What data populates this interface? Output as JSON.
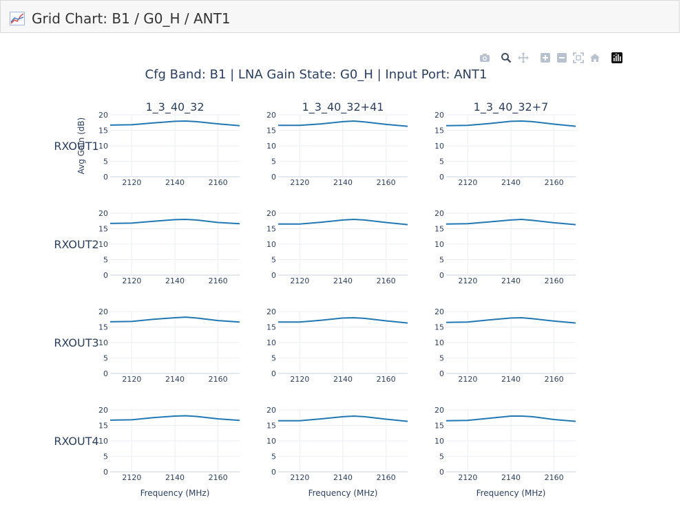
{
  "window": {
    "title": "Grid Chart: B1 / G0_H / ANT1",
    "icon": "chart-icon"
  },
  "modebar": {
    "items": [
      "camera-icon",
      "zoom-icon",
      "pan-icon",
      "zoom-in-icon",
      "zoom-out-icon",
      "autoscale-icon",
      "reset-axes-icon",
      "plotly-logo-icon"
    ]
  },
  "chart_data": {
    "type": "line",
    "title": "Cfg Band: B1 | LNA Gain State: G0_H | Input Port: ANT1",
    "column_titles": [
      "1_3_40_32",
      "1_3_40_32+41",
      "1_3_40_32+7"
    ],
    "row_labels": [
      "RXOUT1",
      "RXOUT2",
      "RXOUT3",
      "RXOUT4"
    ],
    "xlabel": "Frequency (MHz)",
    "ylabel": "Avg Gain (dB)",
    "xlim": [
      2110,
      2170
    ],
    "ylim": [
      0,
      20
    ],
    "x_ticks": [
      2120,
      2140,
      2160
    ],
    "y_ticks": [
      0,
      5,
      10,
      15,
      20
    ],
    "grid": true,
    "line_color": "#1f77b4",
    "x": [
      2110,
      2120,
      2130,
      2140,
      2145,
      2150,
      2160,
      2170
    ],
    "series": [
      {
        "row": "RXOUT1",
        "col": "1_3_40_32",
        "values": [
          16.7,
          16.8,
          17.4,
          17.9,
          18.0,
          17.8,
          17.1,
          16.5
        ]
      },
      {
        "row": "RXOUT1",
        "col": "1_3_40_32+41",
        "values": [
          16.6,
          16.6,
          17.1,
          17.8,
          18.0,
          17.7,
          16.9,
          16.3
        ]
      },
      {
        "row": "RXOUT1",
        "col": "1_3_40_32+7",
        "values": [
          16.5,
          16.6,
          17.2,
          17.9,
          18.0,
          17.8,
          17.0,
          16.3
        ]
      },
      {
        "row": "RXOUT2",
        "col": "1_3_40_32",
        "values": [
          16.7,
          16.8,
          17.4,
          17.9,
          18.0,
          17.8,
          17.0,
          16.6
        ]
      },
      {
        "row": "RXOUT2",
        "col": "1_3_40_32+41",
        "values": [
          16.5,
          16.5,
          17.1,
          17.8,
          18.0,
          17.8,
          17.0,
          16.3
        ]
      },
      {
        "row": "RXOUT2",
        "col": "1_3_40_32+7",
        "values": [
          16.5,
          16.6,
          17.2,
          17.8,
          18.0,
          17.7,
          16.9,
          16.3
        ]
      },
      {
        "row": "RXOUT3",
        "col": "1_3_40_32",
        "values": [
          16.7,
          16.8,
          17.5,
          18.0,
          18.2,
          17.9,
          17.1,
          16.6
        ]
      },
      {
        "row": "RXOUT3",
        "col": "1_3_40_32+41",
        "values": [
          16.6,
          16.6,
          17.2,
          17.9,
          18.0,
          17.8,
          17.0,
          16.3
        ]
      },
      {
        "row": "RXOUT3",
        "col": "1_3_40_32+7",
        "values": [
          16.5,
          16.6,
          17.3,
          17.9,
          18.0,
          17.7,
          16.9,
          16.3
        ]
      },
      {
        "row": "RXOUT4",
        "col": "1_3_40_32",
        "values": [
          16.7,
          16.8,
          17.5,
          18.0,
          18.1,
          17.9,
          17.1,
          16.6
        ]
      },
      {
        "row": "RXOUT4",
        "col": "1_3_40_32+41",
        "values": [
          16.5,
          16.5,
          17.1,
          17.8,
          18.0,
          17.8,
          17.0,
          16.3
        ]
      },
      {
        "row": "RXOUT4",
        "col": "1_3_40_32+7",
        "values": [
          16.5,
          16.6,
          17.3,
          18.0,
          18.0,
          17.8,
          16.9,
          16.3
        ]
      }
    ]
  }
}
